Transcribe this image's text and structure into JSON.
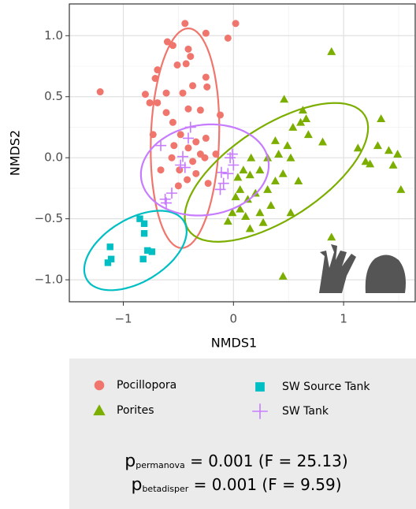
{
  "chart_data": {
    "type": "scatter",
    "x_label": "NMDS1",
    "y_label": "NMDS2",
    "xlim": [
      -1.49,
      1.65
    ],
    "ylim": [
      -1.18,
      1.26
    ],
    "xticks": [
      {
        "value": -1,
        "label": "−1"
      },
      0,
      1
    ],
    "yticks": [
      {
        "value": -1,
        "label": "−1.0"
      },
      {
        "value": -0.5,
        "label": "−0.5"
      },
      {
        "value": 0,
        "label": "0.0"
      },
      {
        "value": 0.5,
        "label": "0.5"
      },
      {
        "value": 1,
        "label": "1.0"
      }
    ],
    "xminorticks": [
      -0.5,
      0.5,
      1.5
    ],
    "yminorticks": [
      -0.75,
      -0.25,
      0.25,
      0.75
    ],
    "grid": true,
    "series": [
      {
        "name": "Pocillopora",
        "color": "#f0766d",
        "shape": "circle",
        "x": [
          -1.21,
          -0.44,
          -0.25,
          0.02,
          -0.05,
          -0.6,
          -0.55,
          -0.41,
          -0.39,
          -0.51,
          -0.43,
          -0.69,
          -0.71,
          -0.8,
          -0.76,
          -0.69,
          -0.61,
          -0.25,
          -0.24,
          -0.37,
          -0.46,
          -0.61,
          -0.55,
          -0.41,
          -0.48,
          -0.34,
          -0.25,
          -0.54,
          -0.41,
          -0.3,
          -0.56,
          -0.37,
          -0.49,
          -0.34,
          -0.42,
          -0.5,
          -0.23,
          -0.16,
          -0.73,
          -0.66,
          -0.12,
          -0.3,
          -0.26
        ],
        "values": [
          0.54,
          1.1,
          1.02,
          1.1,
          0.98,
          0.95,
          0.92,
          0.89,
          0.83,
          0.76,
          0.77,
          0.72,
          0.65,
          0.52,
          0.45,
          0.45,
          0.53,
          0.66,
          0.58,
          0.59,
          0.53,
          0.37,
          0.29,
          0.4,
          0.19,
          0.13,
          0.16,
          0.1,
          0.08,
          0.03,
          0.0,
          -0.03,
          -0.1,
          -0.13,
          -0.18,
          -0.23,
          -0.21,
          0.03,
          0.19,
          -0.1,
          0.35,
          0.39,
          0.0
        ],
        "ellipse": {
          "center": [
            -0.44,
            0.16
          ],
          "axes": [
            [
              0.03,
              0.9
            ],
            [
              0.31,
              0.0
            ]
          ]
        }
      },
      {
        "name": "Porites",
        "color": "#7cae00",
        "shape": "triangle",
        "x": [
          0.89,
          0.63,
          0.46,
          0.61,
          0.68,
          0.54,
          0.66,
          1.34,
          1.31,
          1.41,
          1.45,
          1.2,
          1.24,
          1.13,
          1.52,
          1.49,
          0.49,
          0.38,
          0.41,
          0.52,
          0.31,
          0.24,
          0.15,
          0.09,
          0.16,
          0.04,
          0.06,
          0.02,
          0.13,
          0.2,
          0.31,
          0.38,
          0.45,
          0.34,
          0.24,
          0.11,
          0.15,
          -0.01,
          -0.05,
          0.06,
          0.45,
          0.27,
          0.52,
          0.59,
          0.81,
          0.89
        ],
        "values": [
          0.87,
          0.39,
          0.48,
          0.29,
          0.19,
          0.25,
          0.32,
          0.32,
          0.1,
          0.06,
          -0.06,
          -0.03,
          -0.05,
          0.08,
          -0.26,
          0.03,
          0.1,
          0.14,
          0.03,
          0.0,
          0.0,
          -0.1,
          -0.14,
          -0.1,
          0.0,
          -0.16,
          -0.26,
          -0.32,
          -0.34,
          -0.29,
          -0.26,
          -0.19,
          -0.13,
          -0.39,
          -0.45,
          -0.48,
          -0.58,
          -0.45,
          -0.52,
          -0.42,
          -0.97,
          -0.53,
          -0.45,
          -0.19,
          0.13,
          -0.65
        ],
        "ellipse": {
          "center": [
            0.39,
            -0.12
          ],
          "axes": [
            [
              0.8,
              0.47
            ],
            [
              -0.23,
              0.32
            ]
          ]
        }
      },
      {
        "name": "SW Source Tank",
        "color": "#00bfc4",
        "shape": "square",
        "x": [
          -1.12,
          -1.11,
          -1.14,
          -0.85,
          -0.81,
          -0.81,
          -0.78,
          -0.74,
          -0.82
        ],
        "values": [
          -0.73,
          -0.83,
          -0.86,
          -0.5,
          -0.54,
          -0.62,
          -0.76,
          -0.77,
          -0.83
        ],
        "ellipse": {
          "center": [
            -0.89,
            -0.76
          ],
          "axes": [
            [
              0.44,
              0.24
            ],
            [
              -0.15,
              0.22
            ]
          ]
        }
      },
      {
        "name": "SW Tank",
        "color": "#c77cff",
        "shape": "cross",
        "x": [
          -0.39,
          -0.41,
          -0.46,
          -0.48,
          -0.44,
          -0.56,
          -0.62,
          -0.61,
          -0.11,
          -0.09,
          -0.03,
          -0.01,
          0.0,
          -0.05,
          -0.12,
          -0.66
        ],
        "values": [
          0.25,
          0.16,
          0.01,
          -0.06,
          -0.08,
          -0.29,
          -0.34,
          -0.37,
          -0.12,
          -0.21,
          0.0,
          0.03,
          -0.06,
          -0.13,
          -0.26,
          0.1
        ],
        "ellipse": {
          "center": [
            -0.26,
            -0.1
          ],
          "axes": [
            [
              0.58,
              0.05
            ],
            [
              -0.02,
              0.37
            ]
          ]
        }
      }
    ],
    "stats": [
      {
        "symbol": "p",
        "subscript": "permanova",
        "text": " = 0.001 (F = 25.13)"
      },
      {
        "symbol": "p",
        "subscript": "betadisper",
        "text": " = 0.001 (F = 9.59)"
      }
    ]
  }
}
